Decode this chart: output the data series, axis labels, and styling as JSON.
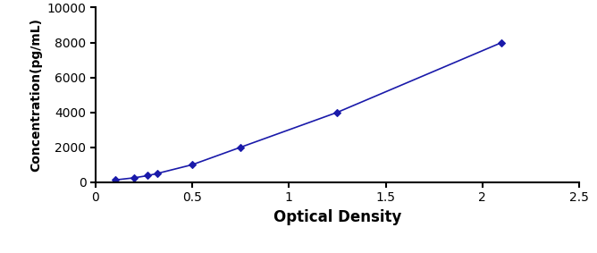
{
  "x": [
    0.1,
    0.2,
    0.27,
    0.32,
    0.5,
    0.75,
    1.25,
    2.1
  ],
  "y": [
    125,
    250,
    375,
    500,
    1000,
    2000,
    4000,
    8000
  ],
  "line_color": "#1a1aaa",
  "marker": "D",
  "marker_size": 4,
  "marker_facecolor": "#1a1aaa",
  "line_style": "-",
  "line_width": 1.2,
  "xlabel": "Optical Density",
  "ylabel": "Concentration(pg/mL)",
  "xlim": [
    0,
    2.5
  ],
  "ylim": [
    0,
    10000
  ],
  "xticks": [
    0,
    0.5,
    1.0,
    1.5,
    2.0,
    2.5
  ],
  "yticks": [
    0,
    2000,
    4000,
    6000,
    8000,
    10000
  ],
  "xlabel_fontsize": 12,
  "ylabel_fontsize": 10,
  "tick_fontsize": 10,
  "xlabel_fontweight": "bold",
  "ylabel_fontweight": "bold",
  "background_color": "#ffffff",
  "spine_color": "#000000"
}
